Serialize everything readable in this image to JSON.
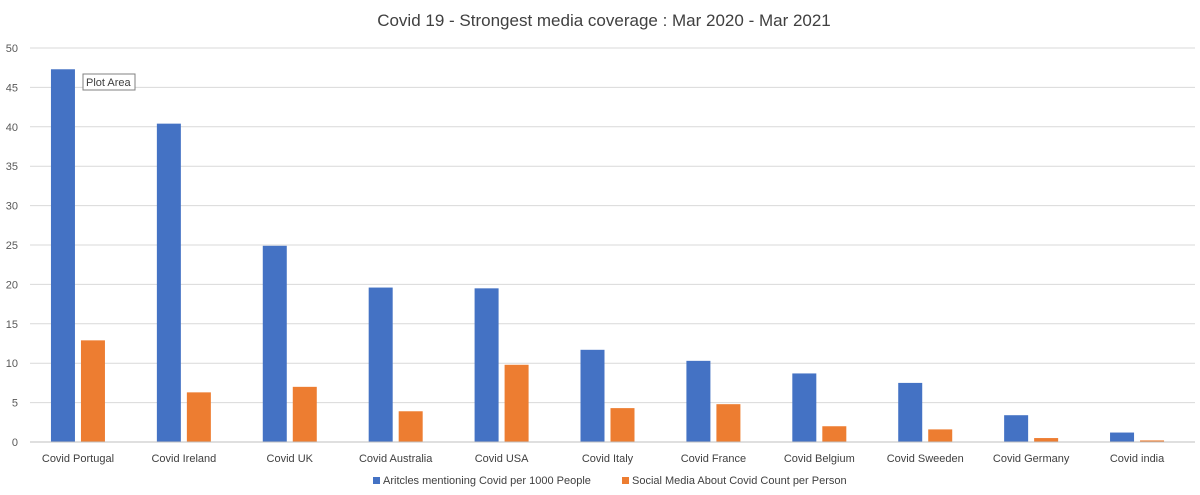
{
  "chart_data": {
    "type": "bar",
    "title": "Covid 19 - Strongest media coverage : Mar 2020 - Mar 2021",
    "xlabel": "",
    "ylabel": "",
    "ylim": [
      0,
      50
    ],
    "yticks": [
      0,
      5,
      10,
      15,
      20,
      25,
      30,
      35,
      40,
      45,
      50
    ],
    "grid": true,
    "legend_position": "bottom",
    "categories": [
      "Covid Portugal",
      "Covid Ireland",
      "Covid UK",
      "Covid Australia",
      "Covid USA",
      "Covid Italy",
      "Covid France",
      "Covid Belgium",
      "Covid Sweeden",
      "Covid Germany",
      "Covid india"
    ],
    "series": [
      {
        "name": "Aritcles mentioning Covid per 1000 People",
        "color": "#4472c4",
        "values": [
          47.3,
          40.4,
          24.9,
          19.6,
          19.5,
          11.7,
          10.3,
          8.7,
          7.5,
          3.4,
          1.2
        ]
      },
      {
        "name": "Social Media About Covid Count per Person",
        "color": "#ed7d31",
        "values": [
          12.9,
          6.3,
          7.0,
          3.9,
          9.8,
          4.3,
          4.8,
          2.0,
          1.6,
          0.5,
          0.2
        ]
      }
    ],
    "tooltip": "Plot Area"
  }
}
